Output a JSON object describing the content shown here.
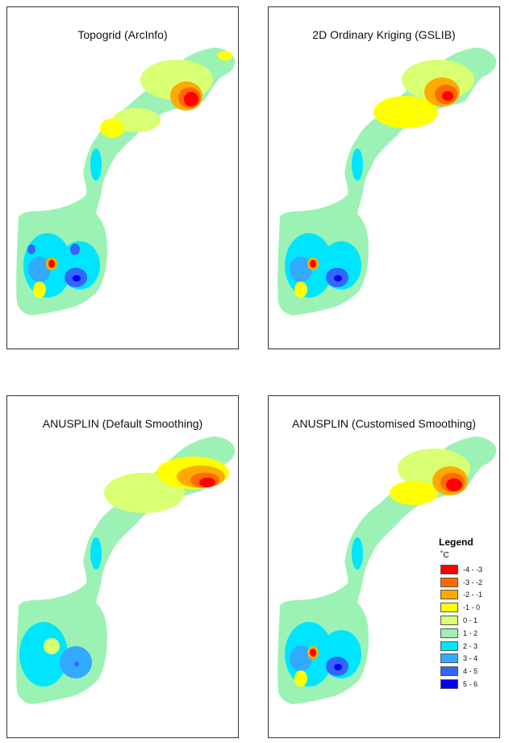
{
  "panels": [
    {
      "title": "Topogrid (ArcInfo)"
    },
    {
      "title": "2D Ordinary Kriging (GSLIB)"
    },
    {
      "title": "ANUSPLIN (Default Smoothing)"
    },
    {
      "title": "ANUSPLIN (Customised Smoothing)"
    }
  ],
  "legend": {
    "title": "Legend",
    "unit": "˚C",
    "classes": [
      {
        "label": "-4 - -3",
        "color": "#ff0000"
      },
      {
        "label": "-3 - -2",
        "color": "#ff6a00"
      },
      {
        "label": "-2 - -1",
        "color": "#ffaa00"
      },
      {
        "label": "-1 - 0",
        "color": "#ffff00"
      },
      {
        "label": "0 - 1",
        "color": "#d9ff73"
      },
      {
        "label": "1 - 2",
        "color": "#9cf2b4"
      },
      {
        "label": "2 - 3",
        "color": "#00e5ff"
      },
      {
        "label": "3 - 4",
        "color": "#33aaff"
      },
      {
        "label": "4 - 5",
        "color": "#3366ff"
      },
      {
        "label": "5 - 6",
        "color": "#0000ff"
      }
    ]
  }
}
